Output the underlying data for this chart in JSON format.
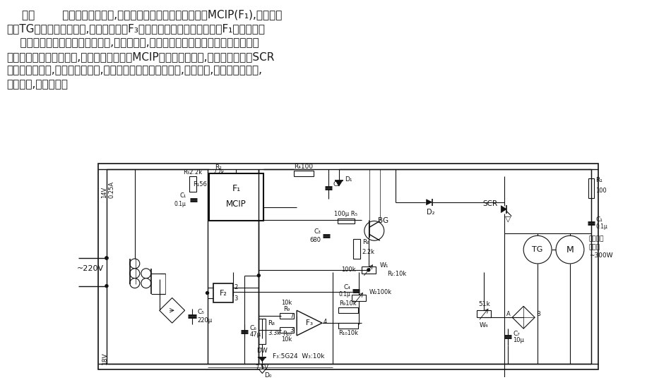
{
  "bg_color": "#ffffff",
  "text_color": "#1a1a1a",
  "figsize": [
    9.33,
    5.39
  ],
  "dpi": 100,
  "text_lines": [
    [
      30,
      12,
      "如图        所示相位控制部分,使用了余弦控制方式的集成电路MCIP(F₁),用转速传"
    ],
    [
      8,
      32,
      "感器TG检测电动机的速度,用运算放大器F₃作反相放大后输出信号馈送给F₁的输入端。"
    ],
    [
      8,
      52,
      "    当电动机在某一设定速度转动时,若负载增加,速度便降低。与转速成正比的转速传感"
    ],
    [
      8,
      72,
      "器输出电压也降低。这时,反相放大器输出使MCIP的输出信号增大,通过双向可控硅SCR"
    ],
    [
      8,
      92,
      "使负载电压增加,电动机转速增大,这就保持恒定的转速。反之,负载减轻,与上述情况相反,"
    ],
    [
      8,
      112,
      "电机减速,维持恒速。"
    ]
  ]
}
